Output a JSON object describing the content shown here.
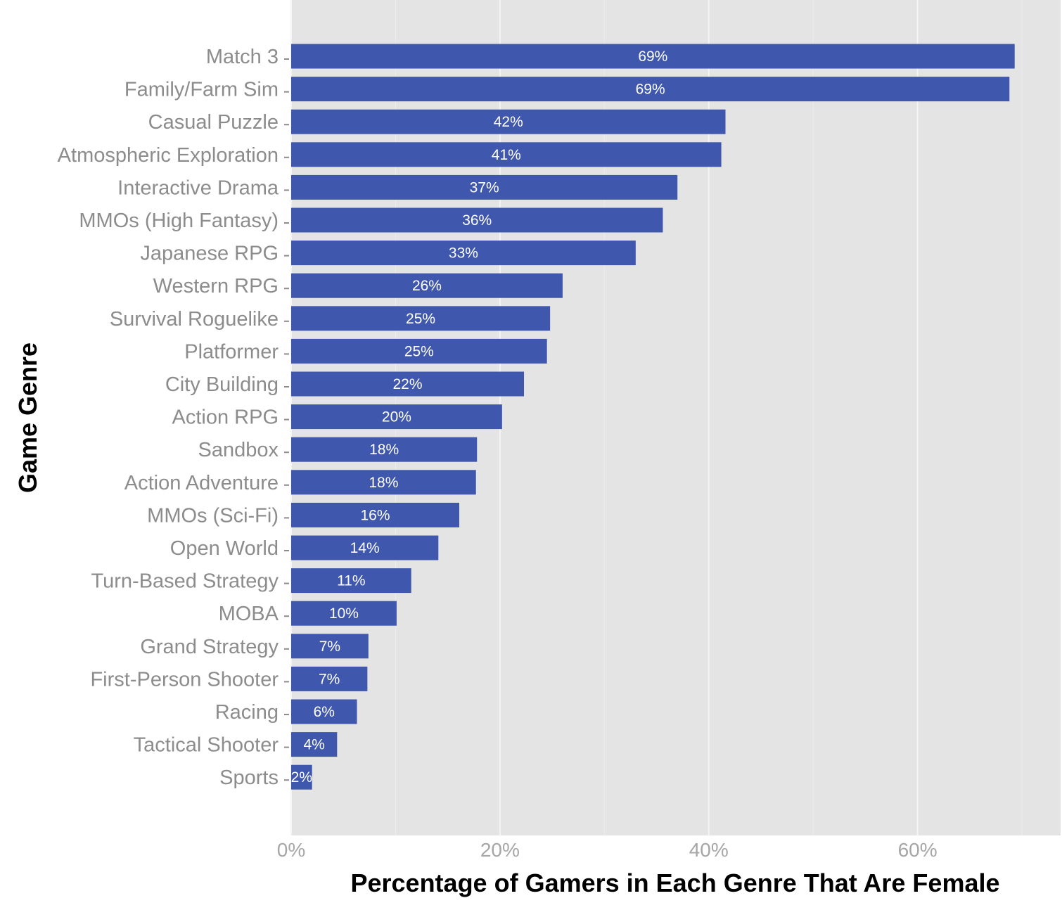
{
  "chart_data": {
    "type": "bar",
    "orientation": "horizontal",
    "categories": [
      "Match 3",
      "Family/Farm Sim",
      "Casual Puzzle",
      "Atmospheric Exploration",
      "Interactive Drama",
      "MMOs (High Fantasy)",
      "Japanese RPG",
      "Western RPG",
      "Survival Roguelike",
      "Platformer",
      "City Building",
      "Action RPG",
      "Sandbox",
      "Action Adventure",
      "MMOs (Sci-Fi)",
      "Open World",
      "Turn-Based Strategy",
      "MOBA",
      "Grand Strategy",
      "First-Person Shooter",
      "Racing",
      "Tactical Shooter",
      "Sports"
    ],
    "values": [
      69.3,
      68.8,
      41.6,
      41.2,
      37.0,
      35.6,
      33.0,
      26.0,
      24.8,
      24.5,
      22.3,
      20.2,
      17.8,
      17.7,
      16.1,
      14.1,
      11.5,
      10.1,
      7.4,
      7.3,
      6.3,
      4.4,
      2.0
    ],
    "labels": [
      "69%",
      "69%",
      "42%",
      "41%",
      "37%",
      "36%",
      "33%",
      "26%",
      "25%",
      "25%",
      "22%",
      "20%",
      "18%",
      "18%",
      "16%",
      "14%",
      "11%",
      "10%",
      "7%",
      "7%",
      "6%",
      "4%",
      "2%"
    ],
    "xlim": [
      0,
      73.7
    ],
    "xticks": [
      0,
      20,
      40,
      60
    ],
    "xtick_labels": [
      "0%",
      "20%",
      "40%",
      "60%"
    ],
    "xlabel": "Percentage of Gamers in Each Genre That Are Female",
    "ylabel": "Game Genre",
    "title": "",
    "grid": true,
    "colors": {
      "bar": "#3f57ac",
      "panel": "#e4e4e4",
      "grid_major": "#f4f4f4",
      "grid_minor": "#ececec",
      "category_text": "#8c8c8c",
      "tick_text": "#a6a6a6",
      "bar_label_text": "#ffffff",
      "axis_title_text": "#000000"
    }
  }
}
